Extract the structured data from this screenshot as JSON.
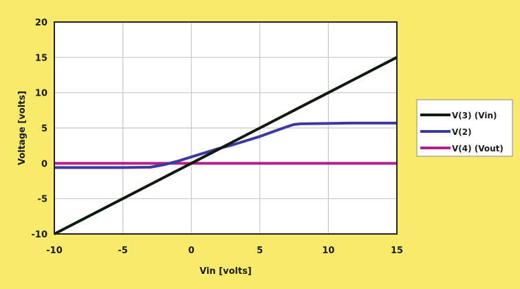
{
  "chart_data": {
    "type": "line",
    "title": "",
    "xlabel": "Vin [volts]",
    "ylabel": "Voltage [volts]",
    "xlim": [
      -10,
      15
    ],
    "ylim": [
      -10,
      20
    ],
    "x_ticks": [
      "-10",
      "-5",
      "0",
      "5",
      "10",
      "15"
    ],
    "y_ticks": [
      "20",
      "15",
      "10",
      "5",
      "0",
      "-5",
      "-10"
    ],
    "grid": true,
    "legend_position": "right",
    "x": [
      -10,
      -5,
      -3,
      -2,
      -1,
      0,
      1,
      2,
      3,
      4,
      5,
      6,
      7,
      7.5,
      8,
      10,
      12,
      15
    ],
    "series": [
      {
        "name": "V(3) (Vin)",
        "color": "#0d1a0d",
        "values": [
          -10,
          -5,
          -3,
          -2,
          -1,
          0,
          1,
          2,
          3,
          4,
          5,
          6,
          7,
          7.5,
          8,
          10,
          12,
          15
        ]
      },
      {
        "name": "V(2)",
        "color": "#3a3aa0",
        "values": [
          -0.6,
          -0.6,
          -0.55,
          -0.2,
          0.3,
          0.9,
          1.5,
          2.1,
          2.6,
          3.2,
          3.8,
          4.5,
          5.2,
          5.5,
          5.6,
          5.65,
          5.7,
          5.7
        ]
      },
      {
        "name": "V(4) (Vout)",
        "color": "#b0208a",
        "values": [
          0,
          0,
          0,
          0,
          0,
          0,
          0,
          0,
          0,
          0,
          0,
          0,
          0,
          0,
          0,
          0,
          0,
          0
        ]
      }
    ]
  },
  "legend": {
    "items": [
      {
        "label": "V(3) (Vin)",
        "color": "#0d1a0d"
      },
      {
        "label": "V(2)",
        "color": "#3a3aa0"
      },
      {
        "label": "V(4) (Vout)",
        "color": "#b0208a"
      }
    ]
  },
  "axes": {
    "xlabel": "Vin [volts]",
    "ylabel": "Voltage [volts]"
  }
}
